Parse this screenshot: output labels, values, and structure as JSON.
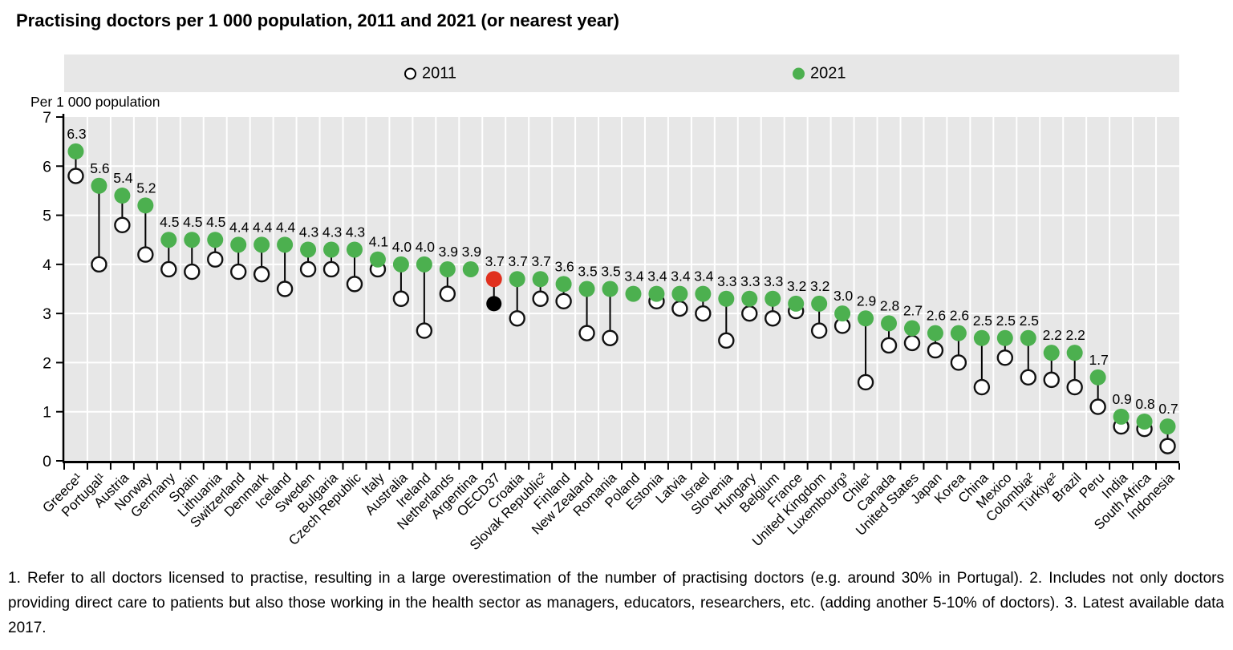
{
  "title": "Practising doctors per 1 000 population, 2011 and 2021 (or nearest year)",
  "y_axis_title": "Per 1 000 population",
  "legend": {
    "position": "top",
    "items": [
      {
        "label": "2011",
        "marker": "open-circle"
      },
      {
        "label": "2021",
        "marker": "filled-circle",
        "color": "#4cb04f"
      }
    ]
  },
  "colors": {
    "series_2021_green": "#4cb04f",
    "highlight_2021_red": "#e0301e",
    "highlight_2011_black": "#000000",
    "plot_background": "#e7e7e7",
    "gridline": "#ffffff",
    "axis": "#000000"
  },
  "footnotes": "1. Refer to all doctors licensed to practise, resulting in a large overestimation of the number of practising doctors (e.g. around 30% in Portugal). 2. Includes not only doctors providing direct care to patients but also those working in the health sector as managers, educators, researchers, etc. (adding another 5-10% of doctors). 3. Latest available data 2017.",
  "chart_data": {
    "type": "scatter",
    "subtype": "dumbbell-dot-plot",
    "title": "Practising doctors per 1 000 population, 2011 and 2021 (or nearest year)",
    "ylabel": "Per 1 000 population",
    "ylim": [
      0,
      7
    ],
    "yticks": [
      0,
      1,
      2,
      3,
      4,
      5,
      6,
      7
    ],
    "grid": true,
    "legend_position": "top",
    "categories": [
      "Greece¹",
      "Portugal¹",
      "Austria",
      "Norway",
      "Germany",
      "Spain",
      "Lithuania",
      "Switzerland",
      "Denmark",
      "Iceland",
      "Sweden",
      "Bulgaria",
      "Czech Republic",
      "Italy",
      "Australia",
      "Ireland",
      "Netherlands",
      "Argentina",
      "OECD37",
      "Croatia",
      "Slovak Republic²",
      "Finland",
      "New Zealand",
      "Romania",
      "Poland",
      "Estonia",
      "Latvia",
      "Israel",
      "Slovenia",
      "Hungary",
      "Belgium",
      "France",
      "United Kingdom",
      "Luxembourg³",
      "Chile¹",
      "Canada",
      "United States",
      "Japan",
      "Korea",
      "China",
      "Mexico",
      "Colombia²",
      "Türkiye²",
      "Brazil",
      "Peru",
      "India",
      "South Africa",
      "Indonesia"
    ],
    "series": [
      {
        "name": "2011",
        "marker": "open-circle",
        "values": [
          5.8,
          4.0,
          4.8,
          4.2,
          3.9,
          3.85,
          4.1,
          3.85,
          3.8,
          3.5,
          3.9,
          3.9,
          3.6,
          3.9,
          3.3,
          2.65,
          3.4,
          null,
          3.2,
          2.9,
          3.3,
          3.25,
          2.6,
          2.5,
          null,
          3.25,
          3.1,
          3.0,
          2.45,
          3.0,
          2.9,
          3.05,
          2.65,
          2.75,
          1.6,
          2.35,
          2.4,
          2.25,
          2.0,
          1.5,
          2.1,
          1.7,
          1.65,
          1.5,
          1.1,
          0.7,
          0.65,
          0.3
        ]
      },
      {
        "name": "2021",
        "marker": "filled-circle",
        "color": "#4cb04f",
        "values": [
          6.3,
          5.6,
          5.4,
          5.2,
          4.5,
          4.5,
          4.5,
          4.4,
          4.4,
          4.4,
          4.3,
          4.3,
          4.3,
          4.1,
          4.0,
          4.0,
          3.9,
          3.9,
          3.7,
          3.7,
          3.7,
          3.6,
          3.5,
          3.5,
          3.4,
          3.4,
          3.4,
          3.4,
          3.3,
          3.3,
          3.3,
          3.2,
          3.2,
          3.0,
          2.9,
          2.8,
          2.7,
          2.6,
          2.6,
          2.5,
          2.5,
          2.5,
          2.2,
          2.2,
          1.7,
          0.9,
          0.8,
          0.7
        ]
      }
    ],
    "value_labels": [
      "6.3",
      "5.6",
      "5.4",
      "5.2",
      "4.5",
      "4.5",
      "4.5",
      "4.4",
      "4.4",
      "4.4",
      "4.3",
      "4.3",
      "4.3",
      "4.1",
      "4.0",
      "4.0",
      "3.9",
      "3.9",
      "3.7",
      "3.7",
      "3.7",
      "3.6",
      "3.5",
      "3.5",
      "3.4",
      "3.4",
      "3.4",
      "3.4",
      "3.3",
      "3.3",
      "3.3",
      "3.2",
      "3.2",
      "3.0",
      "2.9",
      "2.8",
      "2.7",
      "2.6",
      "2.6",
      "2.5",
      "2.5",
      "2.5",
      "2.2",
      "2.2",
      "1.7",
      "0.9",
      "0.8",
      "0.7"
    ],
    "highlight": {
      "category": "OECD37",
      "index": 18,
      "color_2021": "#e0301e",
      "color_2011": "#000000"
    }
  }
}
